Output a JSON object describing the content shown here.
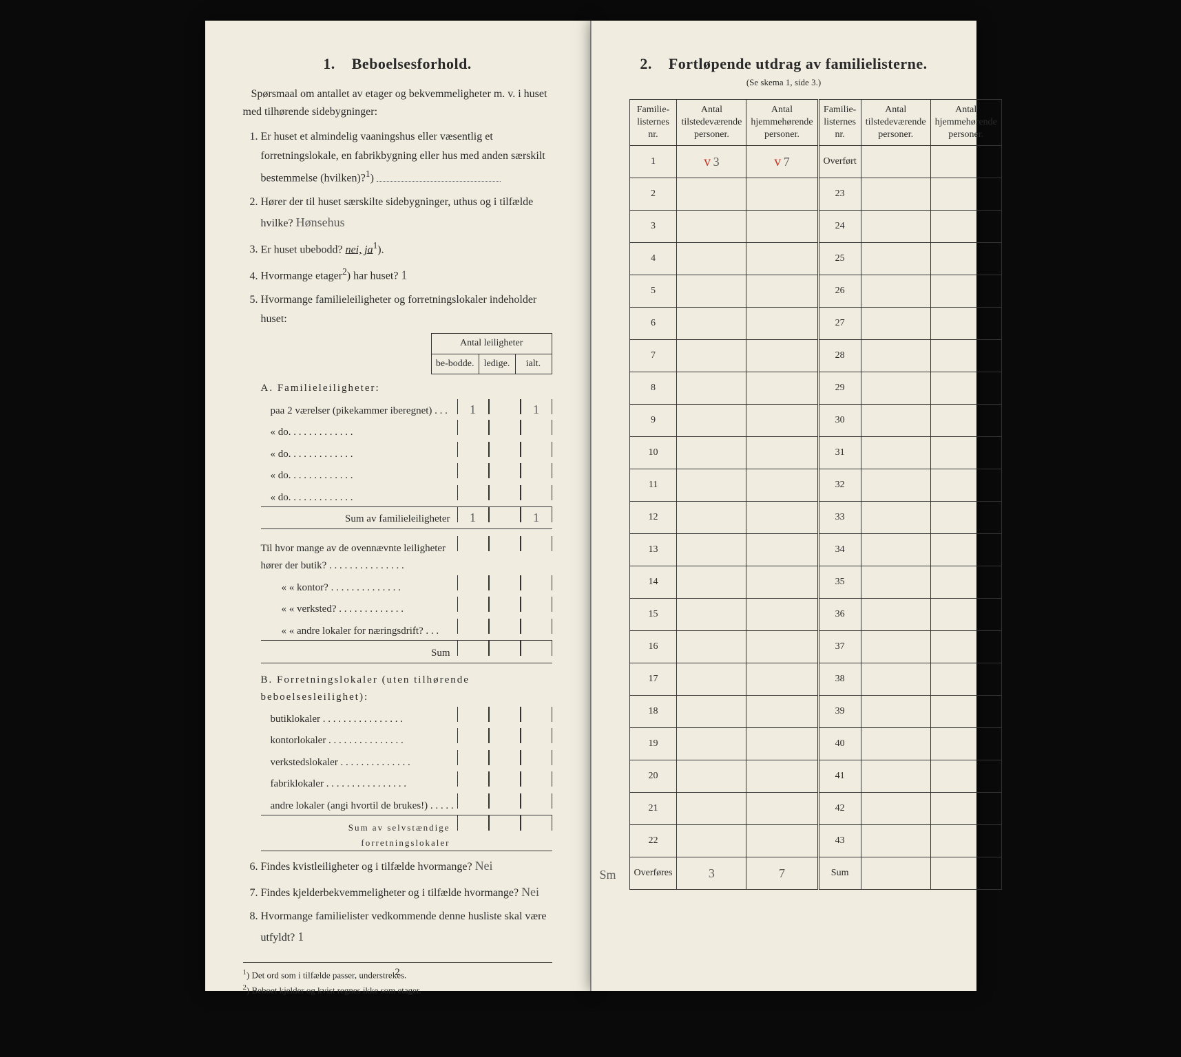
{
  "left": {
    "section_number": "1.",
    "section_title": "Beboelsesforhold.",
    "intro": "Spørsmaal om antallet av etager og bekvemmeligheter m. v. i huset med tilhørende sidebygninger:",
    "q1": "Er huset et almindelig vaaningshus eller væsentlig et forretningslokale, en fabrikbygning eller hus med anden særskilt bestemmelse (hvilken)?",
    "q1_sup": "1",
    "q2": "Hører der til huset særskilte sidebygninger, uthus og i tilfælde hvilke?",
    "q2_answer": "Hønsehus",
    "q3_pre": "Er huset ubebodd?",
    "q3_opts": "nei, ja",
    "q3_sup": "1",
    "q4_pre": "Hvormange etager",
    "q4_sup": "2",
    "q4_post": "har huset?",
    "q4_answer": "1",
    "q5": "Hvormange familieleiligheter og forretningslokaler indeholder huset:",
    "antal_header": "Antal leiligheter",
    "antal_cols": [
      "be-bodde.",
      "ledige.",
      "ialt."
    ],
    "sectionA_title": "A. Familieleiligheter:",
    "sectionA_rows": [
      {
        "text": "paa 2 værelser (pikekammer iberegnet) . . .",
        "cells": [
          "1",
          "",
          "1"
        ]
      },
      {
        "text": "«         do.       . . . . . . . . . . . .",
        "cells": [
          "",
          "",
          ""
        ]
      },
      {
        "text": "«         do.       . . . . . . . . . . . .",
        "cells": [
          "",
          "",
          ""
        ]
      },
      {
        "text": "«         do.       . . . . . . . . . . . .",
        "cells": [
          "",
          "",
          ""
        ]
      },
      {
        "text": "«         do.       . . . . . . . . . . . .",
        "cells": [
          "",
          "",
          ""
        ]
      }
    ],
    "sumA_label": "Sum av familieleiligheter",
    "sumA_cells": [
      "1",
      "",
      "1"
    ],
    "sectionA2_intro": "Til hvor mange av de ovennævnte leiligheter hører der butik? . . . . . . . . . . . . . . .",
    "sectionA2_rows": [
      "«   «  kontor? . . . . . . . . . . . . . .",
      "«   «  verksted? . . . . . . . . . . . . .",
      "«   «  andre lokaler for næringsdrift? . . ."
    ],
    "sumA2_label": "Sum",
    "sectionB_title": "B. Forretningslokaler (uten tilhørende beboelsesleilighet):",
    "sectionB_rows": [
      "butiklokaler . . . . . . . . . . . . . . . .",
      "kontorlokaler . . . . . . . . . . . . . . .",
      "verkstedslokaler . . . . . . . . . . . . . .",
      "fabriklokaler . . . . . . . . . . . . . . . .",
      "andre lokaler (angi hvortil de brukes!) . . . . ."
    ],
    "sumB_label": "Sum av selvstændige forretningslokaler",
    "q6": "Findes kvistleiligheter og i tilfælde hvormange?",
    "q6_answer": "Nei",
    "q7": "Findes kjelderbekvemmeligheter og i tilfælde hvormange?",
    "q7_answer": "Nei",
    "q8": "Hvormange familielister vedkommende denne husliste skal være utfyldt?",
    "q8_answer": "1",
    "footnote1": "Det ord som i tilfælde passer, understrekes.",
    "footnote2": "Beboet kjelder og kvist regnes ikke som etager.",
    "pagenum": "2"
  },
  "right": {
    "section_number": "2.",
    "section_title": "Fortløpende utdrag av familielisterne.",
    "subtitle": "(Se skema 1, side 3.)",
    "headers": [
      "Familie-listernes nr.",
      "Antal tilstedeværende personer.",
      "Antal hjemmehørende personer.",
      "Familie-listernes nr.",
      "Antal tilstedeværende personer.",
      "Antal hjemmehørende personer."
    ],
    "overfort_label": "Overført",
    "row1": {
      "nr": "1",
      "present": "3",
      "home": "7",
      "mark_present": "v",
      "mark_home": "v"
    },
    "left_nrs": [
      "2",
      "3",
      "4",
      "5",
      "6",
      "7",
      "8",
      "9",
      "10",
      "11",
      "12",
      "13",
      "14",
      "15",
      "16",
      "17",
      "18",
      "19",
      "20",
      "21",
      "22"
    ],
    "right_nrs": [
      "23",
      "24",
      "25",
      "26",
      "27",
      "28",
      "29",
      "30",
      "31",
      "32",
      "33",
      "34",
      "35",
      "36",
      "37",
      "38",
      "39",
      "40",
      "41",
      "42",
      "43"
    ],
    "overfores_label": "Overføres",
    "sum_label": "Sum",
    "overfores_present": "3",
    "overfores_home": "7",
    "sum_mark": "Sm"
  }
}
